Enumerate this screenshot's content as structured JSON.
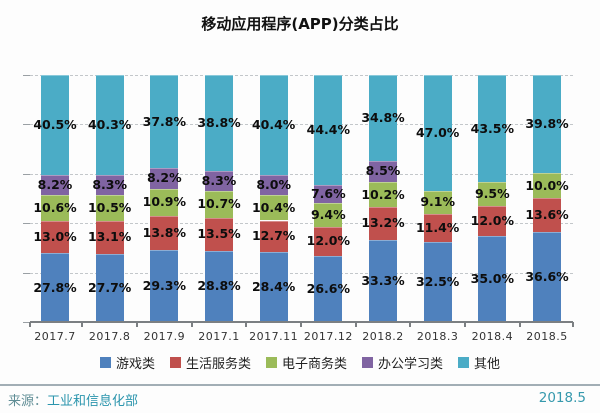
{
  "title": "移动应用程序(APP)分类占比",
  "chart_data": {
    "type": "bar",
    "stacked": true,
    "title": "移动应用程序(APP)分类占比",
    "unit": "%",
    "ylim": [
      0,
      100
    ],
    "grid": {
      "style": "dashed",
      "interval": 20,
      "orientation": "horizontal"
    },
    "legend_position": "bottom",
    "categories": [
      "2017.7",
      "2017.8",
      "2017.9",
      "2017.1",
      "2017.11",
      "2017.12",
      "2018.2",
      "2018.3",
      "2018.4",
      "2018.5"
    ],
    "series": [
      {
        "name": "游戏类",
        "color": "#4F81BD",
        "values": [
          27.8,
          27.7,
          29.3,
          28.8,
          28.4,
          26.6,
          33.3,
          32.5,
          35.0,
          36.6
        ]
      },
      {
        "name": "生活服务类",
        "color": "#C0504D",
        "values": [
          13.0,
          13.1,
          13.8,
          13.5,
          12.7,
          12.0,
          13.2,
          11.4,
          12.0,
          13.6
        ]
      },
      {
        "name": "电子商务类",
        "color": "#9BBB59",
        "values": [
          10.6,
          10.5,
          10.9,
          10.7,
          10.4,
          9.4,
          10.2,
          9.1,
          9.5,
          10.0
        ]
      },
      {
        "name": "办公学习类",
        "color": "#8064A2",
        "values": [
          8.2,
          8.3,
          8.2,
          8.3,
          8.0,
          7.6,
          8.5,
          0,
          0,
          0
        ]
      },
      {
        "name": "其他",
        "color": "#4BACC6",
        "values": [
          40.5,
          40.3,
          37.8,
          38.8,
          40.4,
          44.4,
          34.8,
          47.0,
          43.5,
          39.8
        ]
      }
    ],
    "label_format": "#0.0%"
  },
  "footer": {
    "source_label": "来源：",
    "source_name": "工业和信息化部",
    "date": "2018.5"
  }
}
